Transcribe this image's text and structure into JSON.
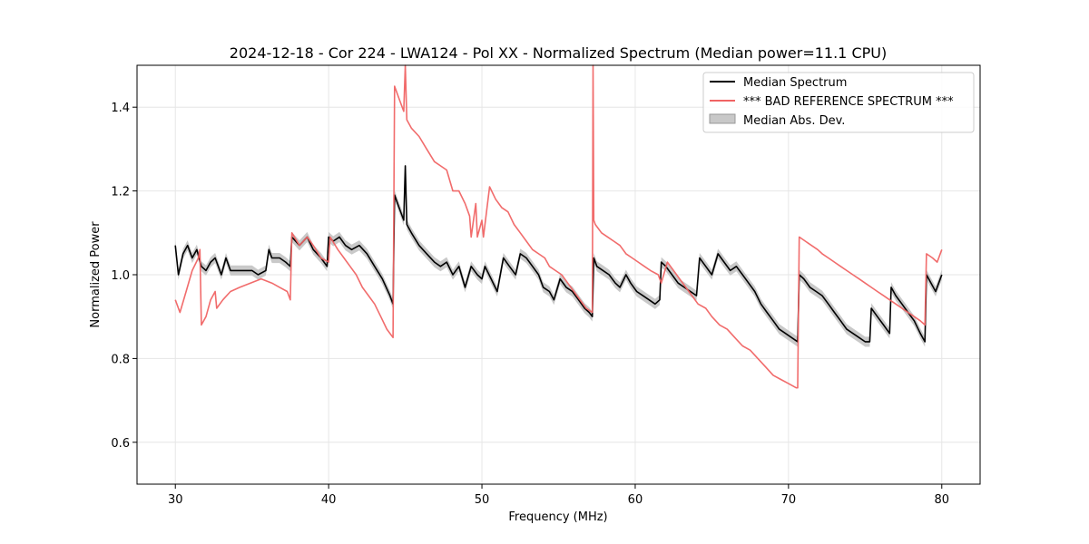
{
  "chart_data": {
    "type": "line",
    "title": "2024-12-18 - Cor 224 - LWA124 - Pol XX - Normalized Spectrum (Median power=11.1 CPU)",
    "xlabel": "Frequency (MHz)",
    "ylabel": "Normalized Power",
    "xlim": [
      27.5,
      82.5
    ],
    "ylim": [
      0.5,
      1.5
    ],
    "xticks": [
      30,
      40,
      50,
      60,
      70,
      80
    ],
    "yticks": [
      0.6,
      0.8,
      1.0,
      1.2,
      1.4
    ],
    "xtick_labels": [
      "30",
      "40",
      "50",
      "60",
      "70",
      "80"
    ],
    "ytick_labels": [
      "0.6",
      "0.8",
      "1.0",
      "1.2",
      "1.4"
    ],
    "grid": true,
    "legend_position": "top-right",
    "legend": [
      "Median Spectrum",
      "*** BAD REFERENCE SPECTRUM ***",
      "Median Abs. Dev."
    ],
    "colors": {
      "median": "#000000",
      "reference": "#f06464",
      "mad": "#bfbfbf",
      "overlap": "#7a0000"
    },
    "series": [
      {
        "name": "Median Spectrum",
        "x": [
          30.0,
          30.2,
          30.5,
          30.8,
          31.1,
          31.4,
          31.7,
          32.0,
          32.3,
          32.6,
          33.0,
          33.3,
          33.6,
          34.0,
          34.5,
          35.0,
          35.4,
          35.9,
          36.1,
          36.3,
          36.8,
          37.2,
          37.5,
          37.6,
          38.1,
          38.6,
          39.0,
          39.5,
          39.9,
          40.0,
          40.3,
          40.7,
          41.1,
          41.5,
          42.0,
          42.5,
          43.0,
          43.5,
          44.0,
          44.2,
          44.3,
          44.6,
          44.9,
          45.0,
          45.1,
          45.4,
          45.9,
          46.4,
          46.9,
          47.3,
          47.7,
          48.1,
          48.5,
          48.9,
          49.3,
          49.7,
          50.0,
          50.2,
          50.6,
          51.0,
          51.4,
          51.8,
          52.2,
          52.5,
          52.9,
          53.3,
          53.7,
          54.0,
          54.4,
          54.7,
          55.1,
          55.5,
          55.9,
          56.3,
          56.7,
          57.0,
          57.2,
          57.3,
          57.5,
          57.9,
          58.3,
          58.7,
          59.0,
          59.4,
          59.7,
          60.1,
          60.5,
          60.9,
          61.3,
          61.6,
          61.7,
          62.0,
          62.4,
          62.8,
          63.2,
          63.6,
          64.0,
          64.2,
          64.6,
          65.0,
          65.4,
          65.8,
          66.2,
          66.6,
          67.0,
          67.4,
          67.8,
          68.2,
          68.6,
          69.0,
          69.4,
          69.8,
          70.2,
          70.6,
          70.7,
          71.0,
          71.4,
          71.8,
          72.2,
          72.6,
          73.0,
          73.4,
          73.8,
          74.2,
          74.6,
          75.0,
          75.3,
          75.4,
          75.8,
          76.2,
          76.6,
          76.7,
          77.0,
          77.4,
          77.8,
          78.2,
          78.6,
          78.9,
          79.0,
          79.3,
          79.6,
          80.0
        ],
        "values": [
          1.07,
          1.0,
          1.05,
          1.07,
          1.04,
          1.06,
          1.02,
          1.01,
          1.03,
          1.04,
          1.0,
          1.04,
          1.01,
          1.01,
          1.01,
          1.01,
          1.0,
          1.01,
          1.06,
          1.04,
          1.04,
          1.03,
          1.02,
          1.09,
          1.07,
          1.09,
          1.06,
          1.04,
          1.02,
          1.09,
          1.08,
          1.09,
          1.07,
          1.06,
          1.07,
          1.05,
          1.02,
          0.99,
          0.95,
          0.93,
          1.19,
          1.16,
          1.13,
          1.26,
          1.12,
          1.1,
          1.07,
          1.05,
          1.03,
          1.02,
          1.03,
          1.0,
          1.02,
          0.97,
          1.02,
          1.0,
          0.99,
          1.02,
          0.99,
          0.96,
          1.04,
          1.02,
          1.0,
          1.05,
          1.04,
          1.02,
          1.0,
          0.97,
          0.96,
          0.94,
          0.99,
          0.97,
          0.96,
          0.94,
          0.92,
          0.91,
          0.9,
          1.04,
          1.02,
          1.01,
          1.0,
          0.98,
          0.97,
          1.0,
          0.98,
          0.96,
          0.95,
          0.94,
          0.93,
          0.94,
          1.03,
          1.02,
          1.0,
          0.98,
          0.97,
          0.96,
          0.95,
          1.04,
          1.02,
          1.0,
          1.05,
          1.03,
          1.01,
          1.02,
          1.0,
          0.98,
          0.96,
          0.93,
          0.91,
          0.89,
          0.87,
          0.86,
          0.85,
          0.84,
          1.0,
          0.99,
          0.97,
          0.96,
          0.95,
          0.93,
          0.91,
          0.89,
          0.87,
          0.86,
          0.85,
          0.84,
          0.84,
          0.92,
          0.9,
          0.88,
          0.86,
          0.97,
          0.95,
          0.93,
          0.91,
          0.89,
          0.86,
          0.84,
          1.0,
          0.98,
          0.96,
          1.0
        ]
      },
      {
        "name": "*** BAD REFERENCE SPECTRUM ***",
        "x": [
          30.0,
          30.3,
          30.7,
          31.1,
          31.5,
          31.6,
          31.7,
          32.0,
          32.3,
          32.6,
          32.7,
          33.1,
          33.6,
          34.2,
          34.9,
          35.6,
          36.3,
          36.8,
          37.3,
          37.5,
          37.6,
          38.1,
          38.6,
          39.0,
          39.5,
          40.0,
          40.1,
          40.6,
          41.0,
          41.4,
          41.8,
          42.2,
          42.6,
          43.0,
          43.4,
          43.8,
          44.2,
          44.3,
          44.6,
          44.9,
          45.0,
          45.1,
          45.4,
          45.9,
          46.4,
          46.9,
          47.3,
          47.7,
          48.1,
          48.5,
          48.9,
          49.2,
          49.3,
          49.6,
          49.7,
          50.0,
          50.1,
          50.5,
          50.9,
          51.3,
          51.7,
          52.1,
          52.5,
          52.9,
          53.3,
          53.7,
          54.1,
          54.4,
          54.8,
          55.2,
          55.6,
          56.0,
          56.4,
          56.8,
          57.2,
          57.25,
          57.3,
          57.4,
          57.8,
          58.2,
          58.6,
          59.0,
          59.4,
          59.8,
          60.2,
          60.6,
          61.0,
          61.5,
          61.7,
          62.1,
          62.5,
          62.9,
          63.3,
          63.7,
          64.1,
          64.6,
          65.0,
          65.5,
          66.0,
          66.5,
          67.0,
          67.5,
          68.0,
          68.5,
          69.0,
          69.5,
          70.0,
          70.5,
          70.6,
          70.7,
          71.1,
          71.5,
          71.9,
          72.2,
          72.6,
          73.0,
          73.4,
          73.8,
          74.2,
          74.6,
          75.0,
          75.4,
          75.8,
          76.2,
          76.6,
          77.0,
          77.4,
          77.8,
          78.2,
          78.6,
          78.9,
          79.0,
          79.4,
          79.7,
          80.0
        ],
        "values": [
          0.94,
          0.91,
          0.96,
          1.01,
          1.04,
          1.06,
          0.88,
          0.9,
          0.94,
          0.96,
          0.92,
          0.94,
          0.96,
          0.97,
          0.98,
          0.99,
          0.98,
          0.97,
          0.96,
          0.94,
          1.1,
          1.07,
          1.09,
          1.07,
          1.04,
          1.03,
          1.09,
          1.06,
          1.04,
          1.02,
          1.0,
          0.97,
          0.95,
          0.93,
          0.9,
          0.87,
          0.85,
          1.45,
          1.42,
          1.39,
          1.5,
          1.37,
          1.35,
          1.33,
          1.3,
          1.27,
          1.26,
          1.25,
          1.2,
          1.2,
          1.17,
          1.14,
          1.09,
          1.17,
          1.09,
          1.13,
          1.09,
          1.21,
          1.18,
          1.16,
          1.15,
          1.12,
          1.1,
          1.08,
          1.06,
          1.05,
          1.04,
          1.02,
          1.01,
          1.0,
          0.98,
          0.96,
          0.94,
          0.92,
          0.91,
          1.5,
          1.13,
          1.12,
          1.1,
          1.09,
          1.08,
          1.07,
          1.05,
          1.04,
          1.03,
          1.02,
          1.01,
          1.0,
          0.98,
          1.03,
          1.01,
          0.99,
          0.97,
          0.95,
          0.93,
          0.92,
          0.9,
          0.88,
          0.87,
          0.85,
          0.83,
          0.82,
          0.8,
          0.78,
          0.76,
          0.75,
          0.74,
          0.73,
          0.73,
          1.09,
          1.08,
          1.07,
          1.06,
          1.05,
          1.04,
          1.03,
          1.02,
          1.01,
          1.0,
          0.99,
          0.98,
          0.97,
          0.96,
          0.95,
          0.94,
          0.93,
          0.92,
          0.91,
          0.9,
          0.89,
          0.88,
          1.05,
          1.04,
          1.03,
          1.06
        ]
      }
    ],
    "mad_width": 0.012
  }
}
